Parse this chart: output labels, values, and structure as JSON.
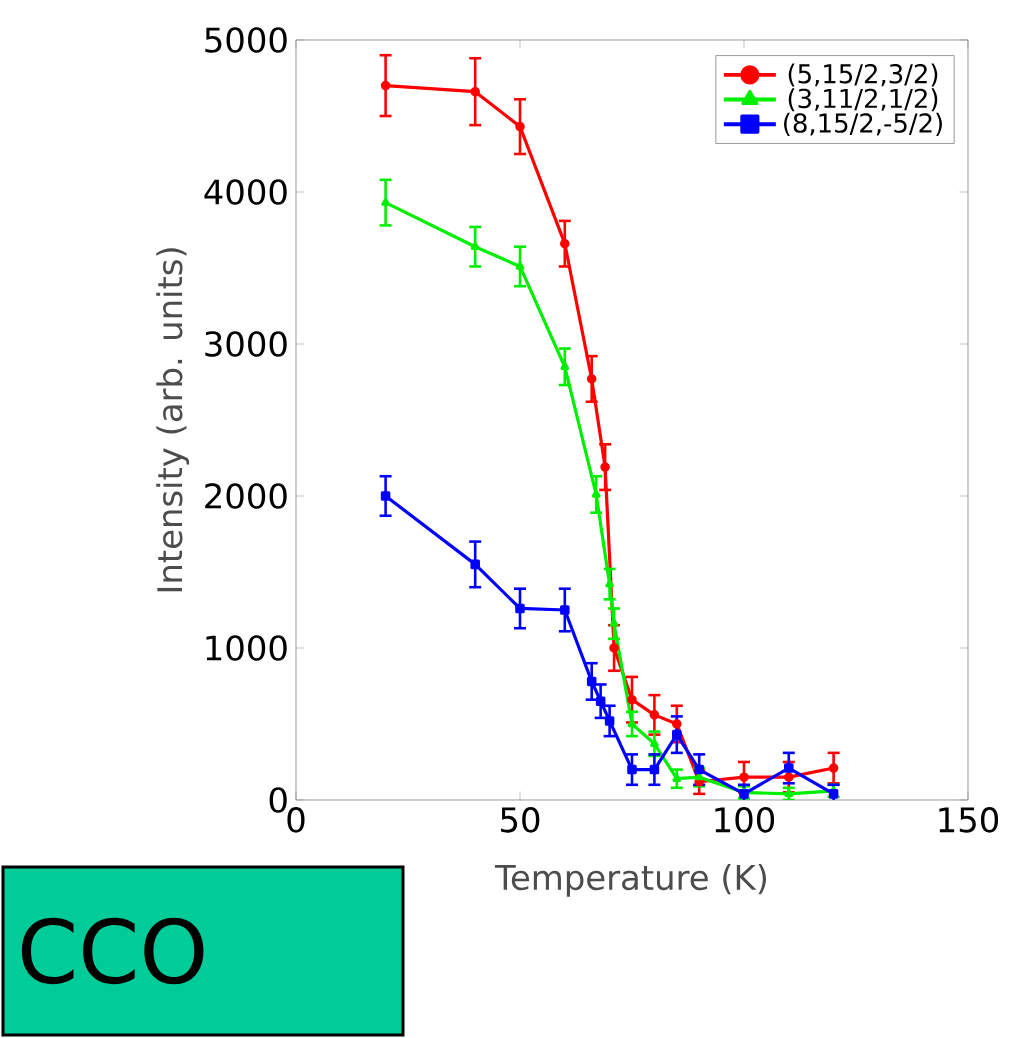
{
  "chart_data": {
    "type": "line",
    "xlabel": "Temperature (K)",
    "ylabel": "Intensity (arb. units)",
    "xlim": [
      0,
      150
    ],
    "xticks": [
      0,
      50,
      100,
      150
    ],
    "ylim": [
      0,
      5000
    ],
    "yticks": [
      0,
      1000,
      2000,
      3000,
      4000,
      5000
    ],
    "grid": false,
    "legend": "top right",
    "line_style": "solid",
    "annotations": [
      "CCO"
    ],
    "series": [
      {
        "name": "(5,15/2,3/2)",
        "color": "#ff0000",
        "marker": "circle",
        "x": [
          20,
          40,
          50,
          60,
          66,
          69,
          71,
          75,
          80,
          85,
          90,
          100,
          110,
          120
        ],
        "values": [
          4700,
          4660,
          4430,
          3660,
          2770,
          2190,
          1000,
          660,
          560,
          500,
          120,
          150,
          150,
          210
        ],
        "errors": [
          200,
          220,
          180,
          150,
          150,
          150,
          150,
          150,
          130,
          120,
          80,
          100,
          100,
          100
        ]
      },
      {
        "name": "(3,11/2,1/2)",
        "color": "#00ee00",
        "marker": "triangle",
        "x": [
          20,
          40,
          50,
          60,
          67,
          70,
          71,
          75,
          80,
          85,
          90,
          100,
          110,
          120
        ],
        "values": [
          3930,
          3640,
          3510,
          2850,
          2010,
          1420,
          1160,
          500,
          370,
          140,
          150,
          50,
          40,
          60
        ],
        "errors": [
          150,
          130,
          130,
          120,
          120,
          100,
          100,
          80,
          80,
          60,
          60,
          40,
          40,
          40
        ]
      },
      {
        "name": "(8,15/2,-5/2)",
        "color": "#0000ff",
        "marker": "square",
        "x": [
          20,
          40,
          50,
          60,
          66,
          68,
          70,
          75,
          80,
          85,
          90,
          100,
          110,
          120
        ],
        "values": [
          2000,
          1550,
          1260,
          1250,
          780,
          650,
          520,
          200,
          200,
          430,
          200,
          40,
          210,
          40
        ],
        "errors": [
          130,
          150,
          130,
          140,
          120,
          110,
          100,
          100,
          100,
          120,
          100,
          60,
          100,
          60
        ]
      }
    ]
  }
}
